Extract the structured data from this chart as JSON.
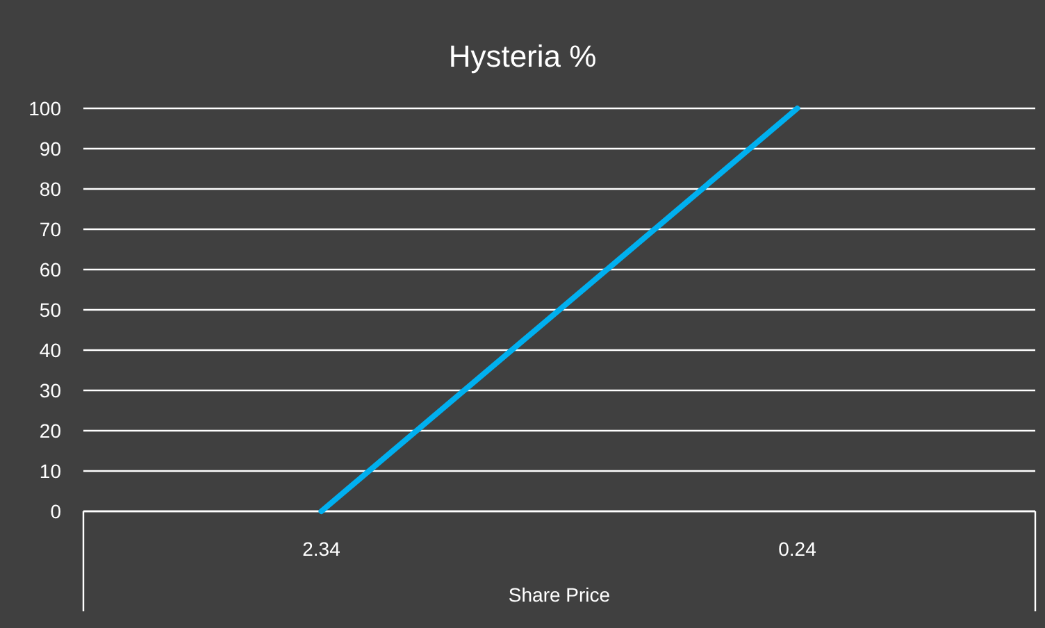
{
  "chart_data": {
    "type": "line",
    "title": "Hysteria %",
    "xlabel": "Share Price",
    "categories": [
      "2.34",
      "0.24"
    ],
    "series": [
      {
        "color": "#00b0f0",
        "values": [
          0,
          100
        ]
      }
    ],
    "ylim": [
      0,
      100
    ],
    "yticks": [
      0,
      10,
      20,
      30,
      40,
      50,
      60,
      70,
      80,
      90,
      100
    ],
    "grid": "y",
    "marker": "none",
    "line_style": "solid"
  }
}
